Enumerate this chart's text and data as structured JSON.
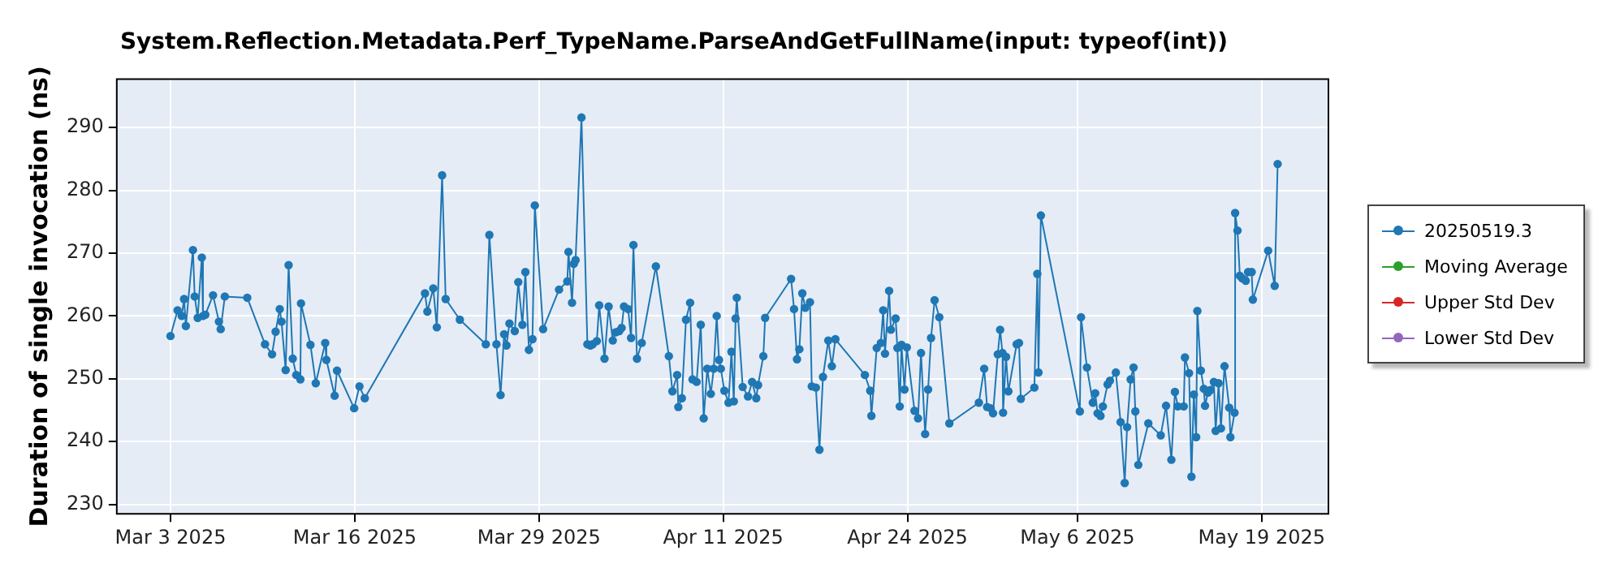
{
  "chart_data": {
    "type": "line",
    "title": "System.Reflection.Metadata.Perf_TypeName.ParseAndGetFullName(input: typeof(int))",
    "ylabel": "Duration of single invocation (ns)",
    "xlim": [
      "2025-02-27T05:00",
      "2025-05-23T17:00"
    ],
    "xticks": [
      {
        "value": "2025-03-03",
        "label": "Mar 3 2025"
      },
      {
        "value": "2025-03-16",
        "label": "Mar 16 2025"
      },
      {
        "value": "2025-03-29",
        "label": "Mar 29 2025"
      },
      {
        "value": "2025-04-11",
        "label": "Apr 11 2025"
      },
      {
        "value": "2025-04-24",
        "label": "Apr 24 2025"
      },
      {
        "value": "2025-05-06",
        "label": "May 6 2025"
      },
      {
        "value": "2025-05-19",
        "label": "May 19 2025"
      }
    ],
    "ylim": [
      228.5,
      297.7
    ],
    "yticks": [
      230,
      240,
      250,
      260,
      270,
      280,
      290
    ],
    "grid": true,
    "legend": "right",
    "marker": "circle",
    "line_style": "solid",
    "x": [
      "2025-03-03T00:00",
      "2025-03-03T12:00",
      "2025-03-03T19:00",
      "2025-03-03T23:00",
      "2025-03-04T02:00",
      "2025-03-04T14:00",
      "2025-03-04T17:00",
      "2025-03-04T22:00",
      "2025-03-05T05:00",
      "2025-03-05T07:00",
      "2025-03-05T11:00",
      "2025-03-06T00:00",
      "2025-03-06T10:00",
      "2025-03-06T13:00",
      "2025-03-06T20:00",
      "2025-03-08T10:00",
      "2025-03-09T16:00",
      "2025-03-10T04:00",
      "2025-03-10T10:00",
      "2025-03-10T17:00",
      "2025-03-10T20:00",
      "2025-03-11T03:00",
      "2025-03-11T08:00",
      "2025-03-11T15:00",
      "2025-03-11T21:00",
      "2025-03-12T04:00",
      "2025-03-12T05:00",
      "2025-03-12T21:00",
      "2025-03-13T06:00",
      "2025-03-13T22:00",
      "2025-03-14T00:00",
      "2025-03-14T14:00",
      "2025-03-14T18:00",
      "2025-03-15T23:00",
      "2025-03-16T08:00",
      "2025-03-16T17:00",
      "2025-03-20T23:00",
      "2025-03-21T03:00",
      "2025-03-21T13:00",
      "2025-03-21T19:00",
      "2025-03-22T04:00",
      "2025-03-22T10:00",
      "2025-03-23T10:00",
      "2025-03-25T06:00",
      "2025-03-25T12:00",
      "2025-03-26T00:00",
      "2025-03-26T07:00",
      "2025-03-26T13:00",
      "2025-03-26T17:00",
      "2025-03-26T22:00",
      "2025-03-27T07:00",
      "2025-03-27T13:00",
      "2025-03-27T20:00",
      "2025-03-28T01:00",
      "2025-03-28T07:00",
      "2025-03-28T13:00",
      "2025-03-28T17:00",
      "2025-03-29T07:00",
      "2025-03-30T10:00",
      "2025-03-31T00:00",
      "2025-03-31T02:00",
      "2025-03-31T08:00",
      "2025-03-31T11:00",
      "2025-03-31T14:00",
      "2025-04-01T00:00",
      "2025-04-01T10:00",
      "2025-04-01T15:00",
      "2025-04-01T19:00",
      "2025-04-02T02:00",
      "2025-04-02T06:00",
      "2025-04-02T15:00",
      "2025-04-02T22:00",
      "2025-04-03T05:00",
      "2025-04-03T10:00",
      "2025-04-03T16:00",
      "2025-04-03T20:00",
      "2025-04-04T00:00",
      "2025-04-04T07:00",
      "2025-04-04T12:00",
      "2025-04-04T16:00",
      "2025-04-04T22:00",
      "2025-04-05T06:00",
      "2025-04-06T06:00",
      "2025-04-07T04:00",
      "2025-04-07T10:00",
      "2025-04-07T18:00",
      "2025-04-07T20:00",
      "2025-04-08T02:00",
      "2025-04-08T09:00",
      "2025-04-08T16:00",
      "2025-04-08T20:00",
      "2025-04-09T03:00",
      "2025-04-09T10:00",
      "2025-04-09T15:00",
      "2025-04-09T21:00",
      "2025-04-10T03:00",
      "2025-04-10T08:00",
      "2025-04-10T13:00",
      "2025-04-10T17:00",
      "2025-04-10T20:00",
      "2025-04-11T02:00",
      "2025-04-11T09:00",
      "2025-04-11T14:00",
      "2025-04-11T18:00",
      "2025-04-11T21:00",
      "2025-04-11T23:00",
      "2025-04-12T09:00",
      "2025-04-12T18:00",
      "2025-04-13T01:00",
      "2025-04-13T08:00",
      "2025-04-13T11:00",
      "2025-04-13T20:00",
      "2025-04-13T23:00",
      "2025-04-15T19:00",
      "2025-04-16T00:00",
      "2025-04-16T05:00",
      "2025-04-16T09:00",
      "2025-04-16T14:00",
      "2025-04-16T19:00",
      "2025-04-17T03:00",
      "2025-04-17T06:00",
      "2025-04-17T13:00",
      "2025-04-17T19:00",
      "2025-04-18T01:00",
      "2025-04-18T10:00",
      "2025-04-18T16:00",
      "2025-04-18T22:00",
      "2025-04-21T00:00",
      "2025-04-21T09:00",
      "2025-04-21T11:00",
      "2025-04-21T20:00",
      "2025-04-22T03:00",
      "2025-04-22T07:00",
      "2025-04-22T10:00",
      "2025-04-22T17:00",
      "2025-04-22T20:00",
      "2025-04-23T04:00",
      "2025-04-23T07:00",
      "2025-04-23T11:00",
      "2025-04-23T14:00",
      "2025-04-23T19:00",
      "2025-04-23T23:00",
      "2025-04-24T12:00",
      "2025-04-24T18:00",
      "2025-04-24T23:00",
      "2025-04-25T06:00",
      "2025-04-25T11:00",
      "2025-04-25T16:00",
      "2025-04-25T22:00",
      "2025-04-26T06:00",
      "2025-04-26T23:00",
      "2025-04-29T01:00",
      "2025-04-29T10:00",
      "2025-04-29T15:00",
      "2025-04-29T21:00",
      "2025-04-30T01:00",
      "2025-04-30T09:00",
      "2025-04-30T13:00",
      "2025-04-30T17:00",
      "2025-04-30T18:00",
      "2025-04-30T23:00",
      "2025-05-01T03:00",
      "2025-05-01T17:00",
      "2025-05-01T21:00",
      "2025-05-02T00:00",
      "2025-05-02T23:00",
      "2025-05-03T04:00",
      "2025-05-03T06:00",
      "2025-05-03T10:00",
      "2025-05-06T04:00",
      "2025-05-06T06:00",
      "2025-05-06T16:00",
      "2025-05-07T02:00",
      "2025-05-07T06:00",
      "2025-05-07T10:00",
      "2025-05-07T15:00",
      "2025-05-07T19:00",
      "2025-05-08T03:00",
      "2025-05-08T07:00",
      "2025-05-08T17:00",
      "2025-05-09T01:00",
      "2025-05-09T08:00",
      "2025-05-09T12:00",
      "2025-05-09T18:00",
      "2025-05-09T23:00",
      "2025-05-10T02:00",
      "2025-05-10T07:00",
      "2025-05-11T00:00",
      "2025-05-11T21:00",
      "2025-05-12T06:00",
      "2025-05-12T15:00",
      "2025-05-12T21:00",
      "2025-05-13T02:00",
      "2025-05-13T12:00",
      "2025-05-13T14:00",
      "2025-05-13T21:00",
      "2025-05-14T01:00",
      "2025-05-14T05:00",
      "2025-05-14T09:00",
      "2025-05-14T11:00",
      "2025-05-14T17:00",
      "2025-05-14T22:00",
      "2025-05-15T00:00",
      "2025-05-15T05:00",
      "2025-05-15T09:00",
      "2025-05-15T15:00",
      "2025-05-15T18:00",
      "2025-05-15T23:00",
      "2025-05-16T03:00",
      "2025-05-16T09:00",
      "2025-05-16T17:00",
      "2025-05-16T19:00",
      "2025-05-17T02:00",
      "2025-05-17T03:00",
      "2025-05-17T07:00",
      "2025-05-17T11:00",
      "2025-05-17T15:00",
      "2025-05-17T21:00",
      "2025-05-18T01:00",
      "2025-05-18T07:00",
      "2025-05-18T09:00",
      "2025-05-19T11:00",
      "2025-05-19T22:00",
      "2025-05-20T03:00"
    ],
    "series": [
      {
        "name": "20250519.3",
        "color": "#1f77b4",
        "values": [
          256.8,
          260.9,
          260.0,
          262.7,
          258.4,
          270.5,
          263.1,
          259.7,
          269.3,
          260.0,
          260.2,
          263.3,
          259.1,
          257.9,
          263.1,
          262.9,
          255.5,
          253.9,
          257.5,
          261.1,
          259.1,
          251.4,
          268.1,
          253.2,
          250.6,
          249.9,
          262.0,
          255.4,
          249.3,
          255.7,
          253.0,
          247.3,
          251.3,
          245.3,
          248.8,
          246.9,
          263.6,
          260.7,
          264.4,
          258.2,
          282.4,
          262.7,
          259.4,
          255.5,
          272.9,
          255.5,
          247.4,
          257.1,
          255.3,
          258.8,
          257.6,
          265.4,
          258.6,
          267.0,
          254.6,
          256.3,
          277.6,
          257.9,
          264.2,
          265.5,
          270.2,
          262.1,
          268.3,
          268.9,
          291.6,
          255.5,
          255.3,
          255.5,
          256.0,
          261.7,
          253.2,
          261.5,
          256.1,
          257.4,
          257.6,
          258.1,
          261.5,
          261.1,
          256.5,
          271.3,
          253.2,
          255.7,
          267.9,
          253.6,
          248.0,
          250.6,
          245.5,
          246.9,
          259.4,
          262.1,
          249.9,
          249.5,
          258.6,
          243.7,
          251.6,
          247.6,
          251.6,
          260.0,
          253.0,
          251.6,
          248.1,
          246.2,
          254.3,
          246.4,
          259.6,
          262.9,
          248.7,
          247.2,
          249.5,
          246.9,
          249.0,
          253.6,
          259.7,
          265.9,
          261.1,
          253.1,
          254.7,
          263.6,
          261.3,
          262.2,
          248.8,
          248.6,
          238.7,
          250.3,
          256.1,
          252.0,
          256.3,
          250.6,
          248.1,
          244.1,
          254.9,
          255.7,
          260.9,
          254.0,
          264.0,
          257.8,
          259.6,
          254.9,
          245.6,
          255.4,
          248.3,
          255.0,
          244.9,
          243.7,
          254.1,
          241.2,
          248.3,
          256.5,
          262.5,
          259.8,
          242.9,
          246.2,
          251.6,
          245.5,
          245.3,
          244.5,
          253.9,
          257.8,
          254.1,
          244.6,
          253.5,
          248.0,
          255.5,
          255.7,
          246.8,
          248.6,
          266.7,
          251.0,
          276.0,
          244.8,
          259.8,
          251.8,
          246.2,
          247.7,
          244.5,
          244.1,
          245.6,
          249.1,
          249.7,
          251.0,
          243.1,
          233.4,
          242.3,
          249.9,
          251.8,
          244.8,
          236.3,
          242.9,
          241.0,
          245.7,
          237.1,
          247.9,
          245.6,
          245.6,
          253.4,
          250.9,
          234.4,
          247.5,
          240.7,
          260.8,
          251.3,
          248.4,
          245.7,
          247.8,
          248.2,
          249.5,
          241.7,
          249.3,
          242.1,
          252.0,
          245.4,
          240.7,
          244.6,
          276.4,
          273.6,
          266.4,
          266.0,
          265.6,
          267.0,
          267.0,
          262.6,
          270.4,
          264.8,
          284.2
        ]
      },
      {
        "name": "Moving Average",
        "color": "#2ca02c",
        "values": [
          null,
          null,
          null,
          null,
          null,
          null,
          null,
          null,
          null,
          null,
          null,
          null,
          null,
          null,
          null,
          null,
          null,
          null,
          null,
          null,
          null,
          null,
          null,
          null,
          null,
          null,
          null,
          null,
          null,
          null,
          null,
          null,
          null,
          null,
          null,
          null,
          null,
          null,
          null,
          null,
          null,
          null,
          null,
          null,
          null,
          null,
          null,
          null,
          null,
          null,
          null,
          null,
          null,
          null,
          null,
          null,
          null,
          null,
          null,
          null,
          null,
          null,
          null,
          null,
          null,
          null,
          null,
          null,
          null,
          null,
          null,
          null,
          null,
          null,
          null,
          null,
          null,
          null,
          null,
          null,
          null,
          null,
          null,
          null,
          null,
          null,
          null,
          null,
          null,
          null,
          null,
          null,
          null,
          null,
          null,
          null,
          null,
          null,
          null,
          null,
          null,
          null,
          null,
          null,
          null,
          null,
          null,
          null,
          null,
          null,
          null,
          null,
          null,
          null,
          null,
          null,
          null,
          null,
          null,
          null,
          null,
          null,
          null,
          null,
          null,
          null,
          null,
          null,
          null,
          null,
          null,
          null,
          null,
          null,
          null,
          null,
          null,
          null,
          null,
          null,
          null,
          null,
          null,
          null,
          null,
          null,
          null,
          null,
          null,
          null,
          null,
          null,
          null,
          null,
          null,
          null,
          null,
          null,
          null,
          null,
          null,
          null,
          null,
          null,
          null,
          null,
          null,
          null,
          null,
          null,
          null,
          null,
          null,
          null,
          null,
          null,
          null,
          null,
          null,
          null,
          null,
          null,
          null,
          null,
          null,
          null,
          null,
          null,
          null,
          null,
          null,
          null,
          null,
          null,
          null,
          null,
          null,
          null,
          null,
          null,
          null,
          null,
          null,
          null,
          null,
          null,
          null,
          null,
          null,
          null,
          null,
          null,
          null,
          null,
          null,
          null,
          null,
          null,
          null,
          null,
          null,
          null,
          null,
          null
        ]
      },
      {
        "name": "Upper Std Dev",
        "color": "#d62728",
        "values": [
          null,
          null,
          null,
          null,
          null,
          null,
          null,
          null,
          null,
          null,
          null,
          null,
          null,
          null,
          null,
          null,
          null,
          null,
          null,
          null,
          null,
          null,
          null,
          null,
          null,
          null,
          null,
          null,
          null,
          null,
          null,
          null,
          null,
          null,
          null,
          null,
          null,
          null,
          null,
          null,
          null,
          null,
          null,
          null,
          null,
          null,
          null,
          null,
          null,
          null,
          null,
          null,
          null,
          null,
          null,
          null,
          null,
          null,
          null,
          null,
          null,
          null,
          null,
          null,
          null,
          null,
          null,
          null,
          null,
          null,
          null,
          null,
          null,
          null,
          null,
          null,
          null,
          null,
          null,
          null,
          null,
          null,
          null,
          null,
          null,
          null,
          null,
          null,
          null,
          null,
          null,
          null,
          null,
          null,
          null,
          null,
          null,
          null,
          null,
          null,
          null,
          null,
          null,
          null,
          null,
          null,
          null,
          null,
          null,
          null,
          null,
          null,
          null,
          null,
          null,
          null,
          null,
          null,
          null,
          null,
          null,
          null,
          null,
          null,
          null,
          null,
          null,
          null,
          null,
          null,
          null,
          null,
          null,
          null,
          null,
          null,
          null,
          null,
          null,
          null,
          null,
          null,
          null,
          null,
          null,
          null,
          null,
          null,
          null,
          null,
          null,
          null,
          null,
          null,
          null,
          null,
          null,
          null,
          null,
          null,
          null,
          null,
          null,
          null,
          null,
          null,
          null,
          null,
          null,
          null,
          null,
          null,
          null,
          null,
          null,
          null,
          null,
          null,
          null,
          null,
          null,
          null,
          null,
          null,
          null,
          null,
          null,
          null,
          null,
          null,
          null,
          null,
          null,
          null,
          null,
          null,
          null,
          null,
          null,
          null,
          null,
          null,
          null,
          null,
          null,
          null,
          null,
          null,
          null,
          null,
          null,
          null,
          null,
          null,
          null,
          null,
          null,
          null,
          null,
          null,
          null,
          null,
          null,
          null
        ]
      },
      {
        "name": "Lower Std Dev",
        "color": "#9467bd",
        "values": [
          null,
          null,
          null,
          null,
          null,
          null,
          null,
          null,
          null,
          null,
          null,
          null,
          null,
          null,
          null,
          null,
          null,
          null,
          null,
          null,
          null,
          null,
          null,
          null,
          null,
          null,
          null,
          null,
          null,
          null,
          null,
          null,
          null,
          null,
          null,
          null,
          null,
          null,
          null,
          null,
          null,
          null,
          null,
          null,
          null,
          null,
          null,
          null,
          null,
          null,
          null,
          null,
          null,
          null,
          null,
          null,
          null,
          null,
          null,
          null,
          null,
          null,
          null,
          null,
          null,
          null,
          null,
          null,
          null,
          null,
          null,
          null,
          null,
          null,
          null,
          null,
          null,
          null,
          null,
          null,
          null,
          null,
          null,
          null,
          null,
          null,
          null,
          null,
          null,
          null,
          null,
          null,
          null,
          null,
          null,
          null,
          null,
          null,
          null,
          null,
          null,
          null,
          null,
          null,
          null,
          null,
          null,
          null,
          null,
          null,
          null,
          null,
          null,
          null,
          null,
          null,
          null,
          null,
          null,
          null,
          null,
          null,
          null,
          null,
          null,
          null,
          null,
          null,
          null,
          null,
          null,
          null,
          null,
          null,
          null,
          null,
          null,
          null,
          null,
          null,
          null,
          null,
          null,
          null,
          null,
          null,
          null,
          null,
          null,
          null,
          null,
          null,
          null,
          null,
          null,
          null,
          null,
          null,
          null,
          null,
          null,
          null,
          null,
          null,
          null,
          null,
          null,
          null,
          null,
          null,
          null,
          null,
          null,
          null,
          null,
          null,
          null,
          null,
          null,
          null,
          null,
          null,
          null,
          null,
          null,
          null,
          null,
          null,
          null,
          null,
          null,
          null,
          null,
          null,
          null,
          null,
          null,
          null,
          null,
          null,
          null,
          null,
          null,
          null,
          null,
          null,
          null,
          null,
          null,
          null,
          null,
          null,
          null,
          null,
          null,
          null,
          null,
          null,
          null,
          null,
          null,
          null,
          null,
          null
        ]
      }
    ]
  }
}
